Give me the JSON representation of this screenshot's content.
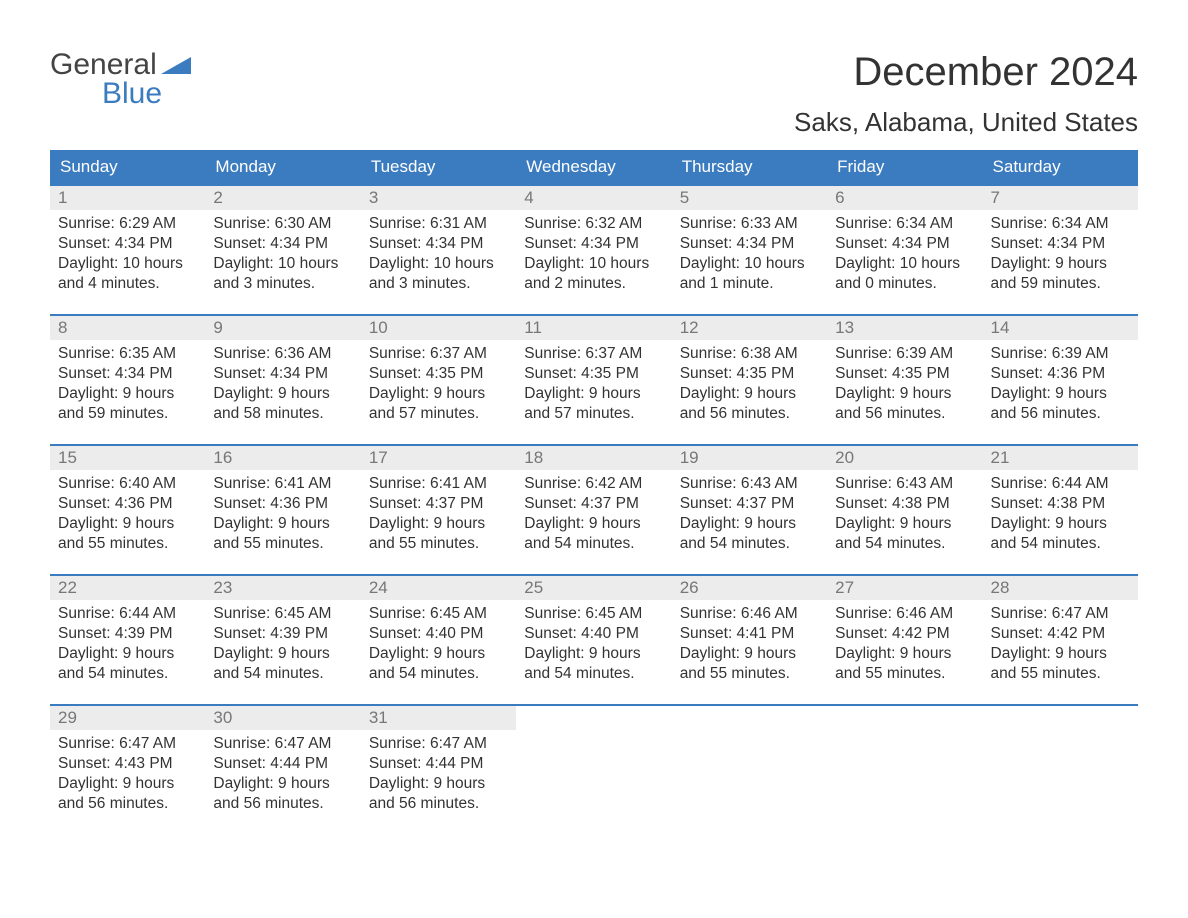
{
  "logo": {
    "general": "General",
    "blue": "Blue"
  },
  "title": "December 2024",
  "subtitle": "Saks, Alabama, United States",
  "colors": {
    "header_bg": "#3b7bbf",
    "header_text": "#ffffff",
    "daynum_bg": "#ececec",
    "daynum_text": "#777777",
    "body_text": "#333333",
    "border": "#3b7bbf"
  },
  "day_headers": [
    "Sunday",
    "Monday",
    "Tuesday",
    "Wednesday",
    "Thursday",
    "Friday",
    "Saturday"
  ],
  "weeks": [
    [
      {
        "n": "1",
        "sunrise": "Sunrise: 6:29 AM",
        "sunset": "Sunset: 4:34 PM",
        "day1": "Daylight: 10 hours",
        "day2": "and 4 minutes."
      },
      {
        "n": "2",
        "sunrise": "Sunrise: 6:30 AM",
        "sunset": "Sunset: 4:34 PM",
        "day1": "Daylight: 10 hours",
        "day2": "and 3 minutes."
      },
      {
        "n": "3",
        "sunrise": "Sunrise: 6:31 AM",
        "sunset": "Sunset: 4:34 PM",
        "day1": "Daylight: 10 hours",
        "day2": "and 3 minutes."
      },
      {
        "n": "4",
        "sunrise": "Sunrise: 6:32 AM",
        "sunset": "Sunset: 4:34 PM",
        "day1": "Daylight: 10 hours",
        "day2": "and 2 minutes."
      },
      {
        "n": "5",
        "sunrise": "Sunrise: 6:33 AM",
        "sunset": "Sunset: 4:34 PM",
        "day1": "Daylight: 10 hours",
        "day2": "and 1 minute."
      },
      {
        "n": "6",
        "sunrise": "Sunrise: 6:34 AM",
        "sunset": "Sunset: 4:34 PM",
        "day1": "Daylight: 10 hours",
        "day2": "and 0 minutes."
      },
      {
        "n": "7",
        "sunrise": "Sunrise: 6:34 AM",
        "sunset": "Sunset: 4:34 PM",
        "day1": "Daylight: 9 hours",
        "day2": "and 59 minutes."
      }
    ],
    [
      {
        "n": "8",
        "sunrise": "Sunrise: 6:35 AM",
        "sunset": "Sunset: 4:34 PM",
        "day1": "Daylight: 9 hours",
        "day2": "and 59 minutes."
      },
      {
        "n": "9",
        "sunrise": "Sunrise: 6:36 AM",
        "sunset": "Sunset: 4:34 PM",
        "day1": "Daylight: 9 hours",
        "day2": "and 58 minutes."
      },
      {
        "n": "10",
        "sunrise": "Sunrise: 6:37 AM",
        "sunset": "Sunset: 4:35 PM",
        "day1": "Daylight: 9 hours",
        "day2": "and 57 minutes."
      },
      {
        "n": "11",
        "sunrise": "Sunrise: 6:37 AM",
        "sunset": "Sunset: 4:35 PM",
        "day1": "Daylight: 9 hours",
        "day2": "and 57 minutes."
      },
      {
        "n": "12",
        "sunrise": "Sunrise: 6:38 AM",
        "sunset": "Sunset: 4:35 PM",
        "day1": "Daylight: 9 hours",
        "day2": "and 56 minutes."
      },
      {
        "n": "13",
        "sunrise": "Sunrise: 6:39 AM",
        "sunset": "Sunset: 4:35 PM",
        "day1": "Daylight: 9 hours",
        "day2": "and 56 minutes."
      },
      {
        "n": "14",
        "sunrise": "Sunrise: 6:39 AM",
        "sunset": "Sunset: 4:36 PM",
        "day1": "Daylight: 9 hours",
        "day2": "and 56 minutes."
      }
    ],
    [
      {
        "n": "15",
        "sunrise": "Sunrise: 6:40 AM",
        "sunset": "Sunset: 4:36 PM",
        "day1": "Daylight: 9 hours",
        "day2": "and 55 minutes."
      },
      {
        "n": "16",
        "sunrise": "Sunrise: 6:41 AM",
        "sunset": "Sunset: 4:36 PM",
        "day1": "Daylight: 9 hours",
        "day2": "and 55 minutes."
      },
      {
        "n": "17",
        "sunrise": "Sunrise: 6:41 AM",
        "sunset": "Sunset: 4:37 PM",
        "day1": "Daylight: 9 hours",
        "day2": "and 55 minutes."
      },
      {
        "n": "18",
        "sunrise": "Sunrise: 6:42 AM",
        "sunset": "Sunset: 4:37 PM",
        "day1": "Daylight: 9 hours",
        "day2": "and 54 minutes."
      },
      {
        "n": "19",
        "sunrise": "Sunrise: 6:43 AM",
        "sunset": "Sunset: 4:37 PM",
        "day1": "Daylight: 9 hours",
        "day2": "and 54 minutes."
      },
      {
        "n": "20",
        "sunrise": "Sunrise: 6:43 AM",
        "sunset": "Sunset: 4:38 PM",
        "day1": "Daylight: 9 hours",
        "day2": "and 54 minutes."
      },
      {
        "n": "21",
        "sunrise": "Sunrise: 6:44 AM",
        "sunset": "Sunset: 4:38 PM",
        "day1": "Daylight: 9 hours",
        "day2": "and 54 minutes."
      }
    ],
    [
      {
        "n": "22",
        "sunrise": "Sunrise: 6:44 AM",
        "sunset": "Sunset: 4:39 PM",
        "day1": "Daylight: 9 hours",
        "day2": "and 54 minutes."
      },
      {
        "n": "23",
        "sunrise": "Sunrise: 6:45 AM",
        "sunset": "Sunset: 4:39 PM",
        "day1": "Daylight: 9 hours",
        "day2": "and 54 minutes."
      },
      {
        "n": "24",
        "sunrise": "Sunrise: 6:45 AM",
        "sunset": "Sunset: 4:40 PM",
        "day1": "Daylight: 9 hours",
        "day2": "and 54 minutes."
      },
      {
        "n": "25",
        "sunrise": "Sunrise: 6:45 AM",
        "sunset": "Sunset: 4:40 PM",
        "day1": "Daylight: 9 hours",
        "day2": "and 54 minutes."
      },
      {
        "n": "26",
        "sunrise": "Sunrise: 6:46 AM",
        "sunset": "Sunset: 4:41 PM",
        "day1": "Daylight: 9 hours",
        "day2": "and 55 minutes."
      },
      {
        "n": "27",
        "sunrise": "Sunrise: 6:46 AM",
        "sunset": "Sunset: 4:42 PM",
        "day1": "Daylight: 9 hours",
        "day2": "and 55 minutes."
      },
      {
        "n": "28",
        "sunrise": "Sunrise: 6:47 AM",
        "sunset": "Sunset: 4:42 PM",
        "day1": "Daylight: 9 hours",
        "day2": "and 55 minutes."
      }
    ],
    [
      {
        "n": "29",
        "sunrise": "Sunrise: 6:47 AM",
        "sunset": "Sunset: 4:43 PM",
        "day1": "Daylight: 9 hours",
        "day2": "and 56 minutes."
      },
      {
        "n": "30",
        "sunrise": "Sunrise: 6:47 AM",
        "sunset": "Sunset: 4:44 PM",
        "day1": "Daylight: 9 hours",
        "day2": "and 56 minutes."
      },
      {
        "n": "31",
        "sunrise": "Sunrise: 6:47 AM",
        "sunset": "Sunset: 4:44 PM",
        "day1": "Daylight: 9 hours",
        "day2": "and 56 minutes."
      },
      {
        "empty": true
      },
      {
        "empty": true
      },
      {
        "empty": true
      },
      {
        "empty": true
      }
    ]
  ]
}
